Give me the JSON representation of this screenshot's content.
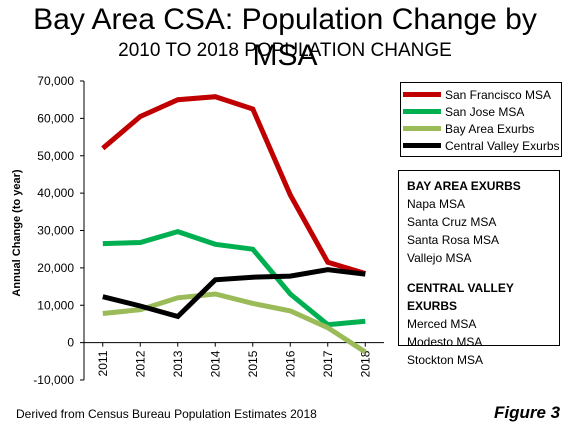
{
  "title": "Bay Area CSA: Population Change by MSA",
  "subtitle": "2010 TO 2018 POPULATION CHANGE",
  "source": "Derived from Census Bureau Population Estimates 2018",
  "figure_label": "Figure 3",
  "chart_data": {
    "type": "line",
    "x": [
      "2011",
      "2012",
      "2013",
      "2014",
      "2015",
      "2016",
      "2017",
      "2018"
    ],
    "ylabel": "Annual Change (to year)",
    "ylim": [
      -10000,
      70000
    ],
    "yticks": [
      "-10,000",
      "0",
      "10,000",
      "20,000",
      "30,000",
      "40,000",
      "50,000",
      "60,000",
      "70,000"
    ],
    "grid": false,
    "legend_position": "top-right",
    "series": [
      {
        "name": "San Francisco MSA",
        "color": "#c00000",
        "values": [
          52000,
          60500,
          65000,
          65800,
          62500,
          39500,
          21500,
          18500
        ]
      },
      {
        "name": "San Jose MSA",
        "color": "#00b050",
        "values": [
          26500,
          26800,
          29700,
          26300,
          25000,
          13000,
          4800,
          5700
        ]
      },
      {
        "name": "Bay Area Exurbs",
        "color": "#9bbb59",
        "values": [
          7800,
          8800,
          12000,
          13000,
          10500,
          8500,
          4000,
          -2500
        ]
      },
      {
        "name": "Central Valley Exurbs",
        "color": "#000000",
        "values": [
          12300,
          9800,
          7000,
          16800,
          17500,
          17800,
          19500,
          18300
        ]
      }
    ]
  },
  "info_box": {
    "bay_area_heading": "BAY AREA EXURBS",
    "bay_area_items": [
      "Napa MSA",
      "Santa Cruz MSA",
      "Santa Rosa MSA",
      "Vallejo MSA"
    ],
    "central_valley_heading": "CENTRAL VALLEY EXURBS",
    "central_valley_items": [
      "Merced MSA",
      "Modesto MSA",
      "Stockton MSA"
    ]
  }
}
